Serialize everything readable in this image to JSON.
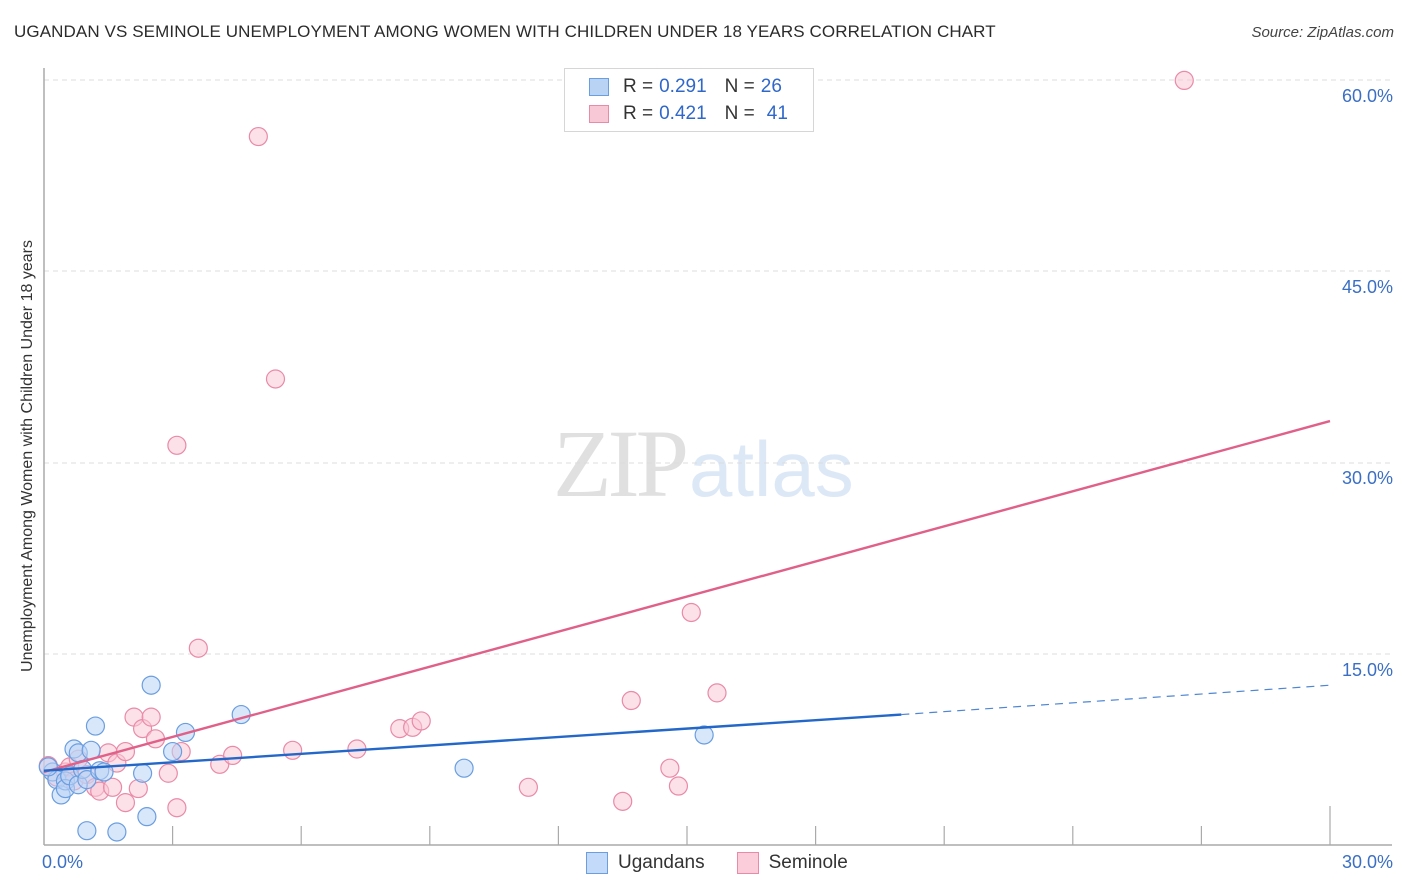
{
  "header": {
    "title": "UGANDAN VS SEMINOLE UNEMPLOYMENT AMONG WOMEN WITH CHILDREN UNDER 18 YEARS CORRELATION CHART",
    "source": "Source: ZipAtlas.com"
  },
  "watermark": {
    "zip": "ZIP",
    "atlas": "atlas"
  },
  "axes": {
    "ylabel": "Unemployment Among Women with Children Under 18 years",
    "yticks": [
      "60.0%",
      "45.0%",
      "30.0%",
      "15.0%"
    ],
    "xticks": {
      "left": "0.0%",
      "right": "30.0%"
    }
  },
  "legend": {
    "rows": [
      {
        "r_label": "R = ",
        "r_value": "0.291",
        "n_label": "N = ",
        "n_value": "26"
      },
      {
        "r_label": "R = ",
        "r_value": "0.421",
        "n_label": "N = ",
        "n_value": "41"
      }
    ],
    "series": [
      {
        "name": "Ugandans"
      },
      {
        "name": "Seminole"
      }
    ]
  },
  "colors": {
    "ugandans_fill": "#b9d3f5",
    "ugandans_stroke": "#6a9ee0",
    "ugandans_line": "#2368c8",
    "seminole_fill": "#f9c8d6",
    "seminole_stroke": "#e98aa8",
    "seminole_line": "#e0608a",
    "tick_text": "#3a6fc4"
  },
  "chart_data": {
    "type": "scatter",
    "title": "UGANDAN VS SEMINOLE UNEMPLOYMENT AMONG WOMEN WITH CHILDREN UNDER 18 YEARS CORRELATION CHART",
    "xlabel": "",
    "ylabel": "Unemployment Among Women with Children Under 18 years",
    "xlim": [
      0,
      30
    ],
    "ylim": [
      0,
      62
    ],
    "x_tick_labels": [
      "0.0%",
      "30.0%"
    ],
    "y_tick_labels": [
      "15.0%",
      "30.0%",
      "45.0%",
      "60.0%"
    ],
    "grid": "horizontal dashed",
    "legend_position": "top-center and bottom",
    "series": [
      {
        "name": "Ugandans",
        "R": 0.291,
        "N": 26,
        "points": [
          [
            0.2,
            5.8
          ],
          [
            0.3,
            5.2
          ],
          [
            0.4,
            4.0
          ],
          [
            0.5,
            5.1
          ],
          [
            0.5,
            4.5
          ],
          [
            0.6,
            5.5
          ],
          [
            0.7,
            7.6
          ],
          [
            0.8,
            7.3
          ],
          [
            0.8,
            4.8
          ],
          [
            0.9,
            6.0
          ],
          [
            1.0,
            5.2
          ],
          [
            1.1,
            7.5
          ],
          [
            1.2,
            9.4
          ],
          [
            1.3,
            5.9
          ],
          [
            1.4,
            5.8
          ],
          [
            1.0,
            1.2
          ],
          [
            1.7,
            1.1
          ],
          [
            2.3,
            5.7
          ],
          [
            2.4,
            2.3
          ],
          [
            2.5,
            12.6
          ],
          [
            3.0,
            7.4
          ],
          [
            3.3,
            8.9
          ],
          [
            4.6,
            10.3
          ],
          [
            9.8,
            6.1
          ],
          [
            15.4,
            8.7
          ],
          [
            0.1,
            6.2
          ]
        ],
        "trend": {
          "x": [
            0,
            20,
            30
          ],
          "y": [
            5.9,
            10.3,
            12.6
          ],
          "dashed_after_x": 20
        }
      },
      {
        "name": "Seminole",
        "R": 0.421,
        "N": 41,
        "points": [
          [
            0.1,
            6.3
          ],
          [
            0.3,
            5.4
          ],
          [
            0.5,
            5.8
          ],
          [
            0.6,
            6.2
          ],
          [
            0.7,
            5.1
          ],
          [
            0.8,
            6.8
          ],
          [
            1.0,
            5.6
          ],
          [
            1.2,
            4.6
          ],
          [
            1.3,
            4.3
          ],
          [
            1.5,
            7.3
          ],
          [
            1.6,
            4.6
          ],
          [
            1.7,
            6.5
          ],
          [
            1.9,
            3.4
          ],
          [
            1.9,
            7.4
          ],
          [
            2.1,
            10.1
          ],
          [
            2.2,
            4.5
          ],
          [
            2.3,
            9.2
          ],
          [
            2.5,
            10.1
          ],
          [
            2.6,
            8.4
          ],
          [
            2.9,
            5.7
          ],
          [
            3.1,
            3.0
          ],
          [
            3.1,
            31.4
          ],
          [
            3.2,
            7.4
          ],
          [
            3.6,
            15.5
          ],
          [
            4.1,
            6.4
          ],
          [
            4.4,
            7.1
          ],
          [
            5.0,
            55.6
          ],
          [
            5.4,
            36.6
          ],
          [
            5.8,
            7.5
          ],
          [
            7.3,
            7.6
          ],
          [
            8.3,
            9.2
          ],
          [
            8.6,
            9.3
          ],
          [
            8.8,
            9.8
          ],
          [
            11.3,
            4.6
          ],
          [
            13.5,
            3.5
          ],
          [
            13.7,
            11.4
          ],
          [
            14.6,
            6.1
          ],
          [
            14.8,
            4.7
          ],
          [
            15.1,
            18.3
          ],
          [
            15.7,
            12.0
          ],
          [
            26.6,
            60.0
          ]
        ],
        "trend": {
          "x": [
            0,
            30
          ],
          "y": [
            5.8,
            33.3
          ]
        }
      }
    ]
  }
}
